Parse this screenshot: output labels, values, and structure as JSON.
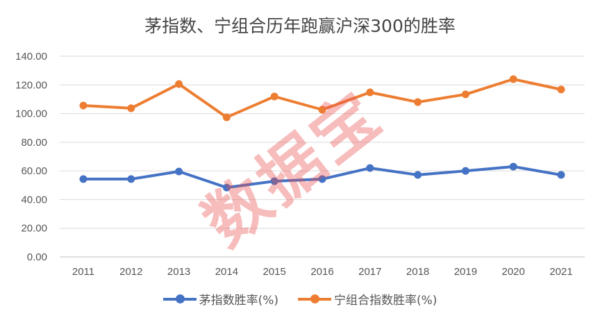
{
  "chart_data": {
    "type": "line",
    "title": "茅指数、宁组合历年跑赢沪深300的胜率",
    "categories": [
      "2011",
      "2012",
      "2013",
      "2014",
      "2015",
      "2016",
      "2017",
      "2018",
      "2019",
      "2020",
      "2021"
    ],
    "series": [
      {
        "name": "茅指数胜率(%)",
        "color": "#4472C4",
        "values": [
          54.3,
          54.3,
          59.6,
          48.4,
          52.8,
          54.3,
          62.0,
          57.2,
          60.0,
          63.0,
          57.2
        ]
      },
      {
        "name": "宁组合指数胜率(%)",
        "color": "#ED7D31",
        "values": [
          105.6,
          103.7,
          120.6,
          97.4,
          111.9,
          102.7,
          114.8,
          108.0,
          113.4,
          124.0,
          116.8
        ]
      }
    ],
    "ylim": [
      0,
      140
    ],
    "yticks": [
      "0.00",
      "20.00",
      "40.00",
      "60.00",
      "80.00",
      "100.00",
      "120.00",
      "140.00"
    ],
    "grid": true,
    "legend": "bottom",
    "watermark": "数据宝"
  }
}
